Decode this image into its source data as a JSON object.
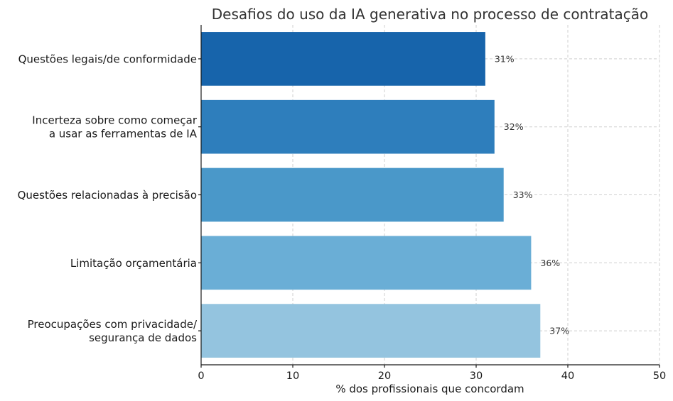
{
  "chart_data": {
    "type": "bar",
    "orientation": "horizontal",
    "title": "Desafios do uso da IA generativa no processo de contratação",
    "xlabel": "% dos profissionais que concordam",
    "ylabel": "",
    "xlim": [
      0,
      50
    ],
    "xticks": [
      0,
      10,
      20,
      30,
      40,
      50
    ],
    "grid": true,
    "categories": [
      [
        "Questões legais/de conformidade"
      ],
      [
        "Incerteza sobre como começar",
        "a usar as ferramentas de IA"
      ],
      [
        "Questões relacionadas à precisão"
      ],
      [
        "Limitação orçamentária"
      ],
      [
        "Preocupações com privacidade/",
        "segurança de dados"
      ]
    ],
    "values": [
      31,
      32,
      33,
      36,
      37
    ],
    "data_labels": [
      "31%",
      "32%",
      "33%",
      "36%",
      "37%"
    ],
    "colors": [
      "#1764ab",
      "#2e7ebc",
      "#4a98c9",
      "#6aaed6",
      "#94c4df"
    ]
  }
}
